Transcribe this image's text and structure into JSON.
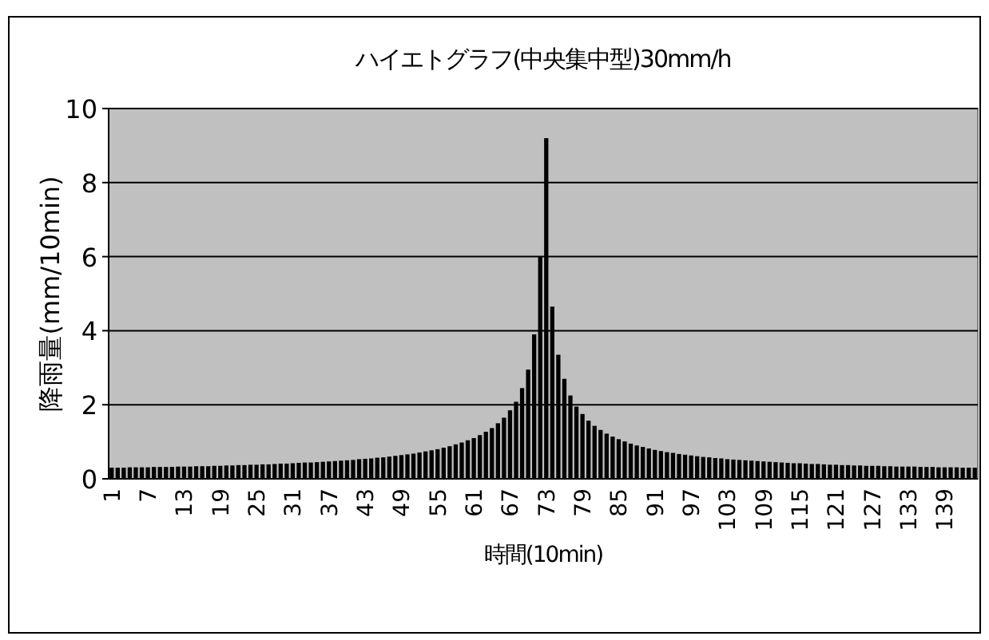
{
  "chart_data": {
    "type": "bar",
    "title": "ハイエトグラフ(中央集中型)30mm/h",
    "xlabel": "時間(10min)",
    "ylabel": "降雨量(mm/10min)",
    "categories": [
      "1",
      null,
      null,
      null,
      null,
      null,
      "7",
      null,
      null,
      null,
      null,
      null,
      "13",
      null,
      null,
      null,
      null,
      null,
      "19",
      null,
      null,
      null,
      null,
      null,
      "25",
      null,
      null,
      null,
      null,
      null,
      "31",
      null,
      null,
      null,
      null,
      null,
      "37",
      null,
      null,
      null,
      null,
      null,
      "43",
      null,
      null,
      null,
      null,
      null,
      "49",
      null,
      null,
      null,
      null,
      null,
      "55",
      null,
      null,
      null,
      null,
      null,
      "61",
      null,
      null,
      null,
      null,
      null,
      "67",
      null,
      null,
      null,
      null,
      null,
      "73",
      null,
      null,
      null,
      null,
      null,
      "79",
      null,
      null,
      null,
      null,
      null,
      "85",
      null,
      null,
      null,
      null,
      null,
      "91",
      null,
      null,
      null,
      null,
      null,
      "97",
      null,
      null,
      null,
      null,
      null,
      "103",
      null,
      null,
      null,
      null,
      null,
      "109",
      null,
      null,
      null,
      null,
      null,
      "115",
      null,
      null,
      null,
      null,
      null,
      "121",
      null,
      null,
      null,
      null,
      null,
      "127",
      null,
      null,
      null,
      null,
      null,
      "133",
      null,
      null,
      null,
      null,
      null,
      "139",
      null,
      null,
      null,
      null,
      null
    ],
    "values": [
      0.3,
      0.3,
      0.3,
      0.31,
      0.31,
      0.31,
      0.31,
      0.32,
      0.32,
      0.32,
      0.32,
      0.33,
      0.33,
      0.33,
      0.34,
      0.34,
      0.34,
      0.35,
      0.35,
      0.36,
      0.36,
      0.37,
      0.37,
      0.38,
      0.38,
      0.39,
      0.39,
      0.4,
      0.41,
      0.41,
      0.42,
      0.43,
      0.44,
      0.44,
      0.45,
      0.46,
      0.47,
      0.48,
      0.49,
      0.5,
      0.51,
      0.53,
      0.54,
      0.55,
      0.57,
      0.58,
      0.6,
      0.62,
      0.64,
      0.66,
      0.68,
      0.71,
      0.74,
      0.77,
      0.8,
      0.84,
      0.88,
      0.93,
      0.98,
      1.04,
      1.1,
      1.18,
      1.27,
      1.37,
      1.5,
      1.65,
      1.85,
      2.08,
      2.45,
      2.95,
      3.9,
      6.0,
      9.2,
      4.65,
      3.35,
      2.7,
      2.25,
      1.95,
      1.75,
      1.57,
      1.43,
      1.32,
      1.22,
      1.14,
      1.07,
      1.01,
      0.95,
      0.9,
      0.86,
      0.82,
      0.78,
      0.75,
      0.72,
      0.7,
      0.67,
      0.65,
      0.63,
      0.61,
      0.59,
      0.58,
      0.56,
      0.55,
      0.53,
      0.52,
      0.51,
      0.5,
      0.49,
      0.48,
      0.47,
      0.46,
      0.45,
      0.44,
      0.43,
      0.42,
      0.42,
      0.41,
      0.4,
      0.4,
      0.39,
      0.38,
      0.38,
      0.37,
      0.37,
      0.36,
      0.36,
      0.35,
      0.35,
      0.35,
      0.34,
      0.34,
      0.33,
      0.33,
      0.33,
      0.33,
      0.32,
      0.32,
      0.32,
      0.31,
      0.31,
      0.31,
      0.31,
      0.3,
      0.3,
      0.3
    ],
    "color": "#000000",
    "ylim": [
      0,
      10
    ],
    "yticks": [
      0,
      2,
      4,
      6,
      8,
      10
    ],
    "grid": "y"
  }
}
